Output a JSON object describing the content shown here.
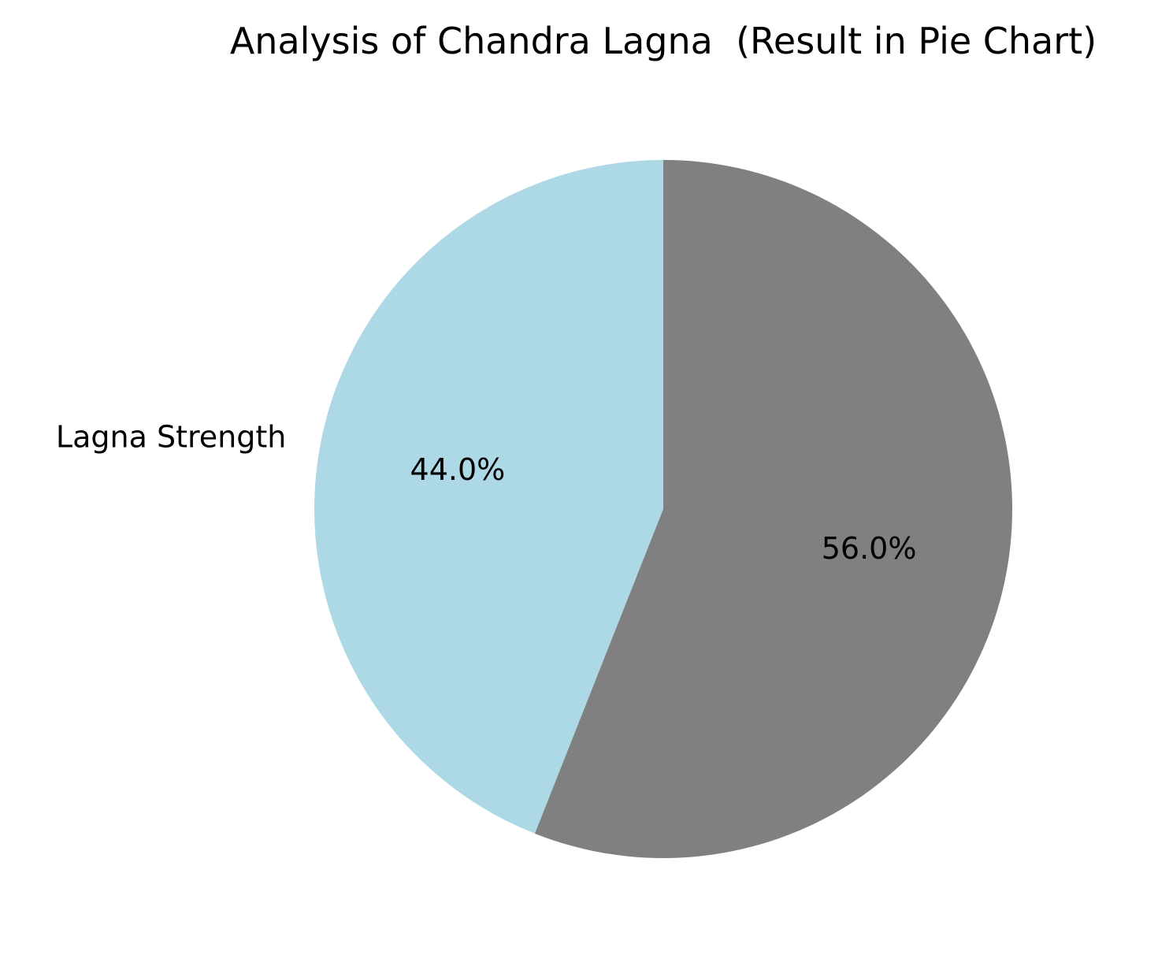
{
  "chart_data": {
    "type": "pie",
    "title": "Analysis of Chandra Lagna  (Result in Pie Chart)",
    "slices": [
      {
        "label": "Lagna Strength",
        "value": 44.0,
        "pct_label": "44.0%",
        "color": "#add8e6"
      },
      {
        "label": "",
        "value": 56.0,
        "pct_label": "56.0%",
        "color": "#808080"
      }
    ],
    "start_angle_deg": 90,
    "direction": "counterclockwise"
  }
}
